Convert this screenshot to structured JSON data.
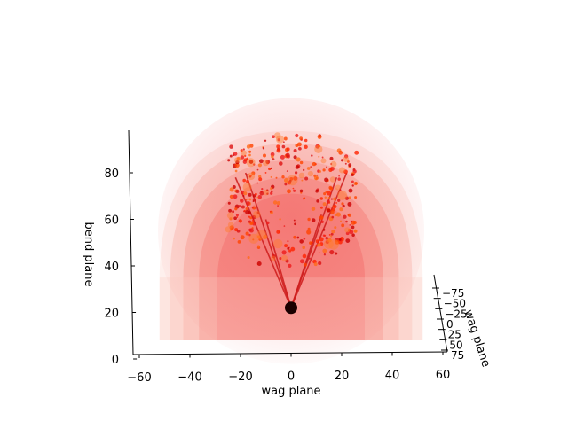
{
  "chart_data": {
    "type": "scatter",
    "projection": "3d",
    "title": "",
    "xlabel": "wag plane",
    "ylabel": "bend plane",
    "zlabel": "wag plane",
    "xlim": [
      -65,
      60
    ],
    "ylim": [
      0,
      98
    ],
    "zlim": [
      -75,
      75
    ],
    "x_ticks": [
      -60,
      -40,
      -20,
      0,
      20,
      40,
      60
    ],
    "y_ticks": [
      0,
      20,
      40,
      60,
      80
    ],
    "z_ticks": [
      -75,
      -50,
      -25,
      0,
      25,
      50,
      75
    ],
    "x_tick_labels": [
      "−60",
      "−40",
      "−20",
      "0",
      "20",
      "40",
      "60"
    ],
    "y_tick_labels": [
      "0",
      "20",
      "40",
      "60",
      "80"
    ],
    "z_tick_labels": [
      "−75",
      "−50",
      "−25",
      "0",
      "25",
      "50",
      "75"
    ],
    "grid": false,
    "legend": "none",
    "origin_point": {
      "x": 0,
      "y": 22,
      "color": "#1a0000"
    },
    "fan_lines": [
      {
        "x_end": -22,
        "y_end": 78
      },
      {
        "x_end": -18,
        "y_end": 80
      },
      {
        "x_end": -10,
        "y_end": 60
      },
      {
        "x_end": 12,
        "y_end": 62
      },
      {
        "x_end": 18,
        "y_end": 78
      },
      {
        "x_end": 22,
        "y_end": 80
      }
    ],
    "clusters": [
      {
        "x_min": -25,
        "x_max": -12,
        "y_min": 50,
        "y_max": 92,
        "color": "#ff2a00"
      },
      {
        "x_min": 12,
        "x_max": 26,
        "y_min": 50,
        "y_max": 90,
        "color": "#ff2a00"
      },
      {
        "x_min": -12,
        "x_max": 12,
        "y_min": 70,
        "y_max": 97,
        "color": "#ff1a1a"
      },
      {
        "x_min": -20,
        "x_max": 20,
        "y_min": 40,
        "y_max": 70,
        "color": "#ee1111"
      }
    ],
    "density_shell": {
      "x_half_width": 52,
      "y_base": 8,
      "y_top": 98,
      "colors": [
        "#fde3df",
        "#fbbcb3",
        "#f79a90",
        "#f46f66",
        "#f25555"
      ]
    },
    "colors": {
      "fan_line": "#cc1a1a",
      "axis": "#000000"
    }
  }
}
